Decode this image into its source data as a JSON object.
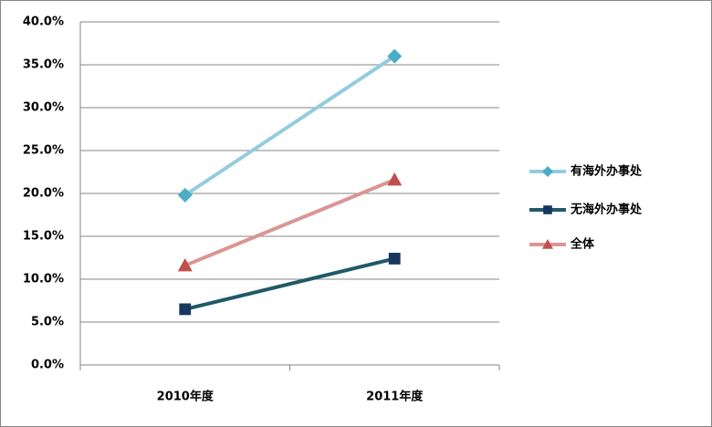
{
  "chart_data": {
    "type": "line",
    "categories": [
      "2010年度",
      "2011年度"
    ],
    "series": [
      {
        "name": "有海外办事处",
        "color": "#93cddd",
        "marker_color": "#4bacc6",
        "marker": "diamond",
        "values": [
          19.8,
          36.0
        ]
      },
      {
        "name": "无海外办事处",
        "color": "#215968",
        "marker_color": "#17375e",
        "marker": "square",
        "values": [
          6.5,
          12.4
        ]
      },
      {
        "name": "全体",
        "color": "#d99694",
        "marker_color": "#c0504d",
        "marker": "triangle",
        "values": [
          11.6,
          21.6
        ]
      }
    ],
    "ylim": [
      0,
      40
    ],
    "yticks": [
      {
        "value": 0,
        "label": "0.0%"
      },
      {
        "value": 5,
        "label": "5.0%"
      },
      {
        "value": 10,
        "label": "10.0%"
      },
      {
        "value": 15,
        "label": "15.0%"
      },
      {
        "value": 20,
        "label": "20.0%"
      },
      {
        "value": 25,
        "label": "25.0%"
      },
      {
        "value": 30,
        "label": "30.0%"
      },
      {
        "value": 35,
        "label": "35.0%"
      },
      {
        "value": 40,
        "label": "40.0%"
      }
    ],
    "grid": true,
    "legend": "right"
  }
}
